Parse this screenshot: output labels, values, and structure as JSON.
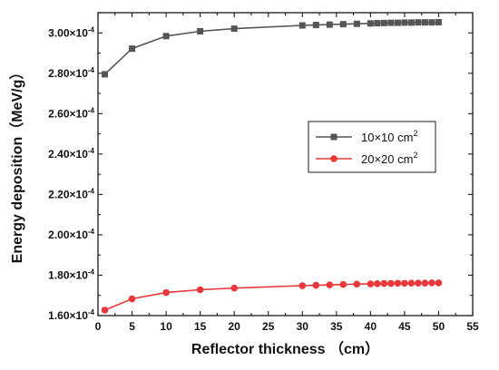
{
  "chart_data": {
    "type": "line",
    "title": "",
    "xlabel": "Reflector thickness （cm）",
    "ylabel": "Energy deposition（MeV/g）",
    "xlim": [
      0,
      55
    ],
    "ylim": [
      1.6,
      3.1
    ],
    "x_ticks": [
      0,
      5,
      10,
      15,
      20,
      25,
      30,
      35,
      40,
      45,
      50,
      55
    ],
    "y_ticks": [
      1.6,
      1.8,
      2.0,
      2.2,
      2.4,
      2.6,
      2.8,
      3.0
    ],
    "y_tick_labels": [
      {
        "mantissa": "1.60×10",
        "exponent": "-4"
      },
      {
        "mantissa": "1.80×10",
        "exponent": "-4"
      },
      {
        "mantissa": "2.00×10",
        "exponent": "-4"
      },
      {
        "mantissa": "2.20×10",
        "exponent": "-4"
      },
      {
        "mantissa": "2.40×10",
        "exponent": "-4"
      },
      {
        "mantissa": "2.60×10",
        "exponent": "-4"
      },
      {
        "mantissa": "2.80×10",
        "exponent": "-4"
      },
      {
        "mantissa": "3.00×10",
        "exponent": "-4"
      }
    ],
    "grid": false,
    "legend_position": "center-right",
    "series": [
      {
        "name": "10×10 cm",
        "name_superscript": "2",
        "color": "#555555",
        "marker": "square",
        "x": [
          1,
          5,
          10,
          15,
          20,
          30,
          32,
          34,
          36,
          38,
          40,
          41,
          42,
          43,
          44,
          45,
          46,
          47,
          48,
          49,
          50
        ],
        "y": [
          2.795,
          2.922,
          2.984,
          3.008,
          3.021,
          3.037,
          3.039,
          3.041,
          3.043,
          3.045,
          3.047,
          3.048,
          3.049,
          3.05,
          3.05,
          3.051,
          3.051,
          3.052,
          3.052,
          3.052,
          3.053
        ]
      },
      {
        "name": "20×20 cm",
        "name_superscript": "2",
        "color": "#e8383b",
        "marker": "circle",
        "x": [
          1,
          5,
          10,
          15,
          20,
          30,
          32,
          34,
          36,
          38,
          40,
          41,
          42,
          43,
          44,
          45,
          46,
          47,
          48,
          49,
          50
        ],
        "y": [
          1.627,
          1.683,
          1.714,
          1.728,
          1.736,
          1.748,
          1.75,
          1.752,
          1.754,
          1.756,
          1.757,
          1.758,
          1.759,
          1.759,
          1.76,
          1.76,
          1.761,
          1.761,
          1.761,
          1.762,
          1.762
        ]
      }
    ]
  }
}
